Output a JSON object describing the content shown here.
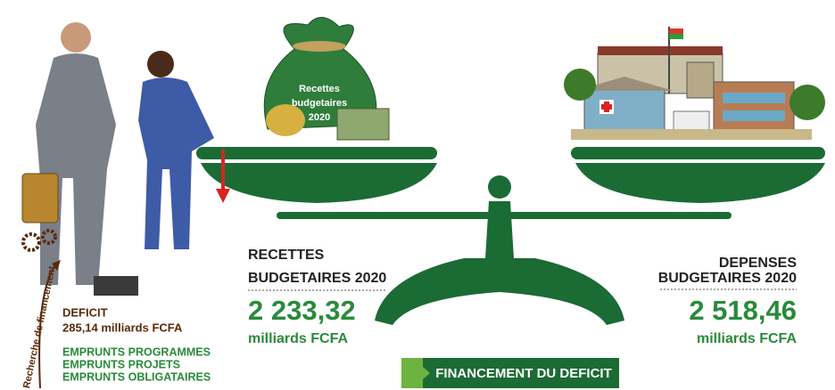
{
  "bag_label": [
    "Recettes",
    "budgetaires",
    "2020"
  ],
  "search_label": "Recherche de financement",
  "deficit": {
    "title": "DEFICIT",
    "amount": "285,14 milliards FCFA",
    "items": [
      "EMPRUNTS PROGRAMMES",
      "EMPRUNTS PROJETS",
      "EMPRUNTS OBLIGATAIRES"
    ]
  },
  "recettes": {
    "line1": "RECETTES",
    "line2": "BUDGETAIRES 2020",
    "value": "2 233,32",
    "unit": "milliards FCFA"
  },
  "depenses": {
    "line1": "DEPENSES",
    "line2": "BUDGETAIRES 2020",
    "value": "2 518,46",
    "unit": "milliards FCFA"
  },
  "financing_label": "FINANCEMENT DU DEFICIT"
}
